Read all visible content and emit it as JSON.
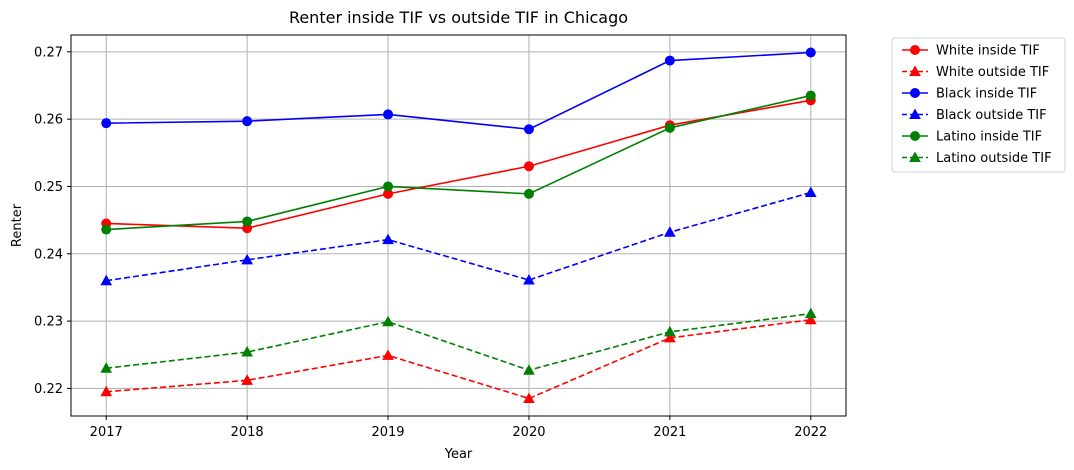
{
  "chart_data": {
    "type": "line",
    "title": "Renter inside TIF vs outside TIF in Chicago",
    "xlabel": "Year",
    "ylabel": "Renter",
    "x": [
      2017,
      2018,
      2019,
      2020,
      2021,
      2022
    ],
    "x_tick_labels": [
      "2017",
      "2018",
      "2019",
      "2020",
      "2021",
      "2022"
    ],
    "y_ticks": [
      0.22,
      0.23,
      0.24,
      0.25,
      0.26,
      0.27
    ],
    "y_tick_labels": [
      "0.22",
      "0.23",
      "0.24",
      "0.25",
      "0.26",
      "0.27"
    ],
    "xlim": [
      2016.75,
      2022.25
    ],
    "ylim": [
      0.2159,
      0.2725
    ],
    "grid": true,
    "legend_position": "outside-right-top",
    "series": [
      {
        "name": "White inside TIF",
        "color": "#ff0000",
        "style": "solid",
        "marker": "circle",
        "values": [
          0.2445,
          0.2438,
          0.2489,
          0.253,
          0.2591,
          0.2628
        ]
      },
      {
        "name": "White outside TIF",
        "color": "#ff0000",
        "style": "dashed",
        "marker": "triangle",
        "values": [
          0.2195,
          0.2212,
          0.2249,
          0.2185,
          0.2275,
          0.2302
        ]
      },
      {
        "name": "Black inside TIF",
        "color": "#0000ff",
        "style": "solid",
        "marker": "circle",
        "values": [
          0.2594,
          0.2597,
          0.2607,
          0.2585,
          0.2687,
          0.2699
        ]
      },
      {
        "name": "Black outside TIF",
        "color": "#0000ff",
        "style": "dashed",
        "marker": "triangle",
        "values": [
          0.236,
          0.2391,
          0.2421,
          0.2361,
          0.2432,
          0.2491
        ]
      },
      {
        "name": "Latino inside TIF",
        "color": "#008000",
        "style": "solid",
        "marker": "circle",
        "values": [
          0.2436,
          0.2448,
          0.25,
          0.2489,
          0.2587,
          0.2635
        ]
      },
      {
        "name": "Latino outside TIF",
        "color": "#008000",
        "style": "dashed",
        "marker": "triangle",
        "values": [
          0.223,
          0.2254,
          0.2299,
          0.2227,
          0.2284,
          0.2311
        ]
      }
    ]
  }
}
